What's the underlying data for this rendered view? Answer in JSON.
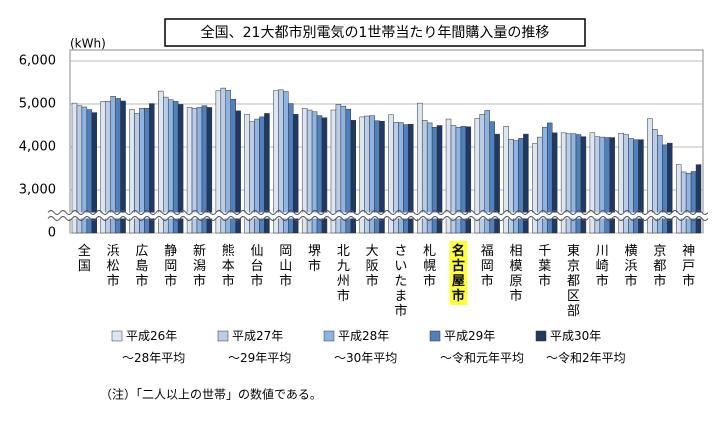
{
  "chart_data": {
    "type": "bar",
    "title": "全国、21大都市別電気の1世帯当たり年間購入量の推移",
    "y_unit": "(kWh)",
    "note": "（注）「二人以上の世帯」の数値である。",
    "categories": [
      "全国",
      "浜松市",
      "広島市",
      "静岡市",
      "新潟市",
      "熊本市",
      "仙台市",
      "岡山市",
      "堺市",
      "北九州市",
      "大阪市",
      "さいたま市",
      "札幌市",
      "名古屋市",
      "福岡市",
      "相模原市",
      "千葉市",
      "東京都区部",
      "川崎市",
      "横浜市",
      "京都市",
      "神戸市"
    ],
    "highlight_category": 13,
    "highlight_color": "#ffff33",
    "series": [
      {
        "name": "平成26年\n～28年平均",
        "color": "#dce6f2",
        "values": [
          5020,
          5060,
          4870,
          5300,
          4920,
          5310,
          4760,
          5310,
          4900,
          4860,
          4700,
          4750,
          5020,
          4650,
          4660,
          4480,
          4080,
          4330,
          4330,
          4320,
          4660,
          3590
        ]
      },
      {
        "name": "平成27年\n～29年平均",
        "color": "#b9cde8",
        "values": [
          4960,
          5060,
          4780,
          5160,
          4900,
          5370,
          4590,
          5330,
          4860,
          4990,
          4720,
          4570,
          4620,
          4500,
          4760,
          4180,
          4230,
          4310,
          4240,
          4290,
          4410,
          3420
        ]
      },
      {
        "name": "平成28年\n～30年平均",
        "color": "#8eb4e3",
        "values": [
          4930,
          5180,
          4900,
          5100,
          4920,
          5320,
          4650,
          5290,
          4820,
          4950,
          4730,
          4570,
          4560,
          4460,
          4850,
          4150,
          4460,
          4310,
          4230,
          4200,
          4270,
          3390
        ]
      },
      {
        "name": "平成29年\n～令和元年平均",
        "color": "#4f81bd",
        "values": [
          4870,
          5130,
          4900,
          5060,
          4960,
          5110,
          4700,
          5010,
          4730,
          4880,
          4610,
          4520,
          4460,
          4480,
          4590,
          4200,
          4560,
          4290,
          4220,
          4170,
          4050,
          3430
        ]
      },
      {
        "name": "平成30年\n～令和2年平均",
        "color": "#1f3864",
        "values": [
          4800,
          5070,
          5010,
          4990,
          4920,
          4840,
          4780,
          4760,
          4680,
          4620,
          4600,
          4530,
          4500,
          4470,
          4300,
          4300,
          4330,
          4240,
          4220,
          4170,
          4090,
          3590
        ]
      }
    ],
    "ylim": [
      0,
      6000
    ],
    "axis_break": [
      0,
      3000
    ],
    "yticks": [
      0,
      {
        "value": 3000,
        "label": "3,000"
      },
      {
        "value": 4000,
        "label": "4,000"
      },
      {
        "value": 5000,
        "label": "5,000"
      },
      {
        "value": 6000,
        "label": "6,000"
      }
    ],
    "grid": true
  }
}
